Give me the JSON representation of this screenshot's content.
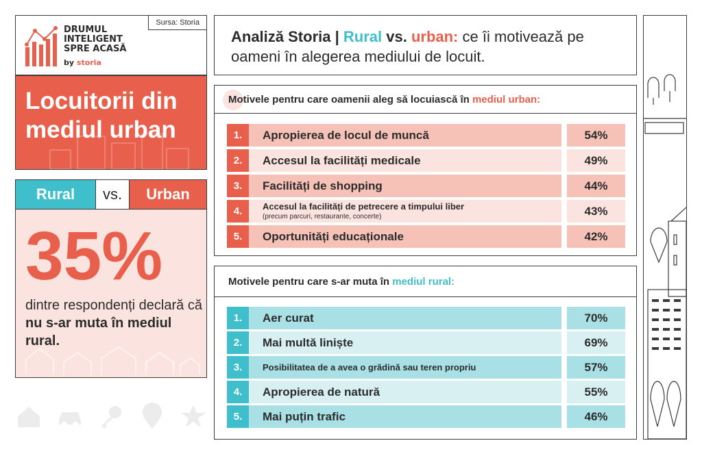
{
  "brand": {
    "title": "DRUMUL INTELIGENT SPRE ACASĂ",
    "by": "by",
    "by_brand": "storia",
    "source": "Sursa: Storia"
  },
  "left": {
    "urban_title": "Locuitorii din mediul urban",
    "rural_label": "Rural",
    "vs_label": "vs.",
    "urban_label": "Urban",
    "big_percent": "35%",
    "desc_prefix": "dintre respondenți declară că ",
    "desc_bold": "nu s-ar muta în mediul rural."
  },
  "header": {
    "part1": "Analiză Storia | ",
    "rural": "Rural",
    "vs": " vs. ",
    "urban": "urban:",
    "part2": " ce îi motivează pe oameni în alegerea mediului de locuit."
  },
  "urban_panel": {
    "title_prefix": "Motivele pentru care oamenii aleg să locuiască în ",
    "title_highlight": "mediul urban:",
    "rows": [
      {
        "num": "1.",
        "label": "Apropierea de locul de muncă",
        "sub": "",
        "pct": "54%"
      },
      {
        "num": "2.",
        "label": "Accesul la facilități medicale",
        "sub": "",
        "pct": "49%"
      },
      {
        "num": "3.",
        "label": "Facilități de shopping",
        "sub": "",
        "pct": "44%"
      },
      {
        "num": "4.",
        "label": "Accesul la facilități de petrecere a timpului liber",
        "sub": "(precum parcuri, restaurante, concerte)",
        "pct": "43%"
      },
      {
        "num": "5.",
        "label": "Oportunități educaționale",
        "sub": "",
        "pct": "42%"
      }
    ]
  },
  "rural_panel": {
    "title_prefix": "Motivele pentru care s-ar muta în ",
    "title_highlight": "mediul rural:",
    "rows": [
      {
        "num": "1.",
        "label": "Aer curat",
        "pct": "70%"
      },
      {
        "num": "2.",
        "label": "Mai multă liniște",
        "pct": "69%"
      },
      {
        "num": "3.",
        "label": "Posibilitatea de a avea o grădină sau teren propriu",
        "pct": "57%"
      },
      {
        "num": "4.",
        "label": "Apropierea de natură",
        "pct": "55%"
      },
      {
        "num": "5.",
        "label": "Mai puțin trafic",
        "pct": "46%"
      }
    ]
  },
  "colors": {
    "urban_accent": "#e8604c",
    "rural_accent": "#3fbfcb",
    "urban_row_dark": "#f6c2b8",
    "urban_row_light": "#fbe3df",
    "rural_row_dark": "#a9e0e5",
    "rural_row_light": "#d8f0f2"
  },
  "icons": [
    "house-icon",
    "car-icon",
    "key-icon",
    "location-pin-icon",
    "star-icon"
  ]
}
